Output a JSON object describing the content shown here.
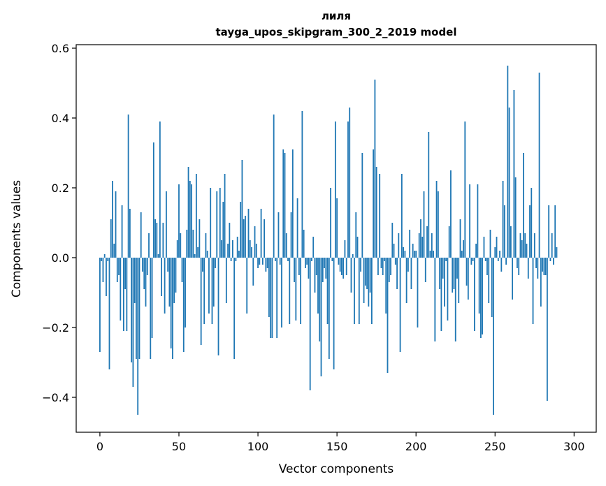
{
  "chart_data": {
    "type": "bar",
    "title": "лиля",
    "subtitle": "tayga_upos_skipgram_300_2_2019 model",
    "xlabel": "Vector components",
    "ylabel": "Components values",
    "xlim": [
      -15,
      314
    ],
    "ylim": [
      -0.5,
      0.61
    ],
    "xticks": [
      0,
      50,
      100,
      150,
      200,
      250,
      300
    ],
    "yticks": [
      -0.4,
      -0.2,
      0.0,
      0.2,
      0.4,
      0.6
    ],
    "ytick_labels": [
      "−0.4",
      "−0.2",
      "0.0",
      "0.2",
      "0.4",
      "0.6"
    ],
    "xtick_labels": [
      "0",
      "50",
      "100",
      "150",
      "200",
      "250",
      "300"
    ],
    "bar_color": "#1f77b4",
    "values": [
      -0.27,
      -0.01,
      -0.07,
      0.01,
      -0.11,
      -0.01,
      -0.32,
      0.11,
      0.22,
      0.04,
      0.19,
      -0.07,
      -0.05,
      -0.18,
      0.15,
      -0.21,
      -0.09,
      -0.21,
      0.41,
      0.14,
      -0.3,
      -0.37,
      -0.13,
      -0.29,
      -0.45,
      -0.29,
      0.13,
      -0.04,
      -0.09,
      -0.14,
      -0.05,
      0.07,
      -0.29,
      -0.23,
      0.33,
      0.11,
      0.1,
      0.01,
      0.39,
      -0.11,
      0.1,
      -0.16,
      0.19,
      -0.04,
      -0.14,
      -0.26,
      -0.29,
      -0.13,
      -0.1,
      0.05,
      0.21,
      0.07,
      -0.07,
      -0.27,
      -0.2,
      0.08,
      0.26,
      0.22,
      0.21,
      0.08,
      0.01,
      0.24,
      0.03,
      0.11,
      -0.25,
      -0.04,
      -0.19,
      0.07,
      0.02,
      -0.16,
      0.2,
      -0.19,
      -0.14,
      -0.03,
      0.19,
      -0.28,
      0.2,
      0.05,
      0.16,
      0.24,
      -0.13,
      0.04,
      0.1,
      -0.01,
      0.05,
      -0.29,
      -0.01,
      0.06,
      0.02,
      0.16,
      0.28,
      0.11,
      0.12,
      -0.16,
      0.14,
      0.05,
      0.03,
      -0.08,
      0.09,
      0.04,
      -0.03,
      -0.02,
      0.14,
      -0.02,
      0.11,
      -0.04,
      -0.03,
      -0.17,
      -0.23,
      -0.23,
      0.41,
      -0.01,
      -0.23,
      0.13,
      -0.02,
      -0.2,
      0.31,
      0.3,
      0.07,
      -0.01,
      -0.19,
      0.13,
      0.31,
      -0.07,
      -0.18,
      0.17,
      -0.05,
      -0.19,
      0.42,
      0.08,
      -0.03,
      -0.02,
      -0.06,
      -0.38,
      -0.01,
      0.06,
      -0.1,
      -0.05,
      -0.16,
      -0.24,
      -0.34,
      -0.07,
      -0.03,
      -0.06,
      -0.19,
      -0.29,
      0.2,
      -0.01,
      -0.32,
      0.39,
      0.17,
      -0.02,
      -0.04,
      -0.05,
      -0.06,
      0.05,
      -0.05,
      0.39,
      0.43,
      -0.1,
      0.01,
      -0.19,
      0.13,
      0.06,
      -0.19,
      -0.04,
      0.3,
      -0.13,
      -0.08,
      -0.09,
      -0.14,
      -0.1,
      -0.19,
      0.31,
      0.51,
      0.26,
      -0.05,
      0.24,
      -0.03,
      -0.05,
      -0.01,
      -0.16,
      -0.33,
      -0.07,
      -0.05,
      0.1,
      0.04,
      -0.02,
      -0.09,
      0.07,
      -0.27,
      0.24,
      0.03,
      0.02,
      -0.13,
      -0.04,
      0.08,
      -0.09,
      0.04,
      0.02,
      0.02,
      -0.2,
      0.07,
      0.11,
      0.06,
      0.19,
      -0.07,
      0.09,
      0.36,
      0.02,
      0.07,
      0.02,
      -0.24,
      0.22,
      0.19,
      -0.09,
      -0.21,
      -0.06,
      -0.14,
      -0.01,
      -0.18,
      0.09,
      0.25,
      -0.1,
      -0.09,
      -0.24,
      -0.06,
      -0.13,
      0.11,
      0.02,
      0.05,
      0.39,
      -0.08,
      -0.12,
      0.21,
      -0.02,
      -0.01,
      -0.21,
      0.04,
      0.21,
      -0.16,
      -0.23,
      -0.22,
      0.06,
      -0.01,
      -0.05,
      -0.13,
      0.08,
      -0.17,
      -0.45,
      0.03,
      0.06,
      -0.01,
      0.02,
      -0.04,
      0.22,
      0.15,
      -0.02,
      0.55,
      0.43,
      0.09,
      -0.12,
      0.48,
      0.23,
      -0.03,
      -0.05,
      0.07,
      0.05,
      0.3,
      0.07,
      0.04,
      -0.06,
      0.15,
      0.2,
      -0.19,
      0.07,
      -0.03,
      -0.06,
      0.53,
      -0.14,
      -0.04,
      -0.05,
      -0.05,
      -0.41,
      0.15,
      -0.01,
      0.07,
      -0.02,
      0.15,
      0.03
    ]
  }
}
